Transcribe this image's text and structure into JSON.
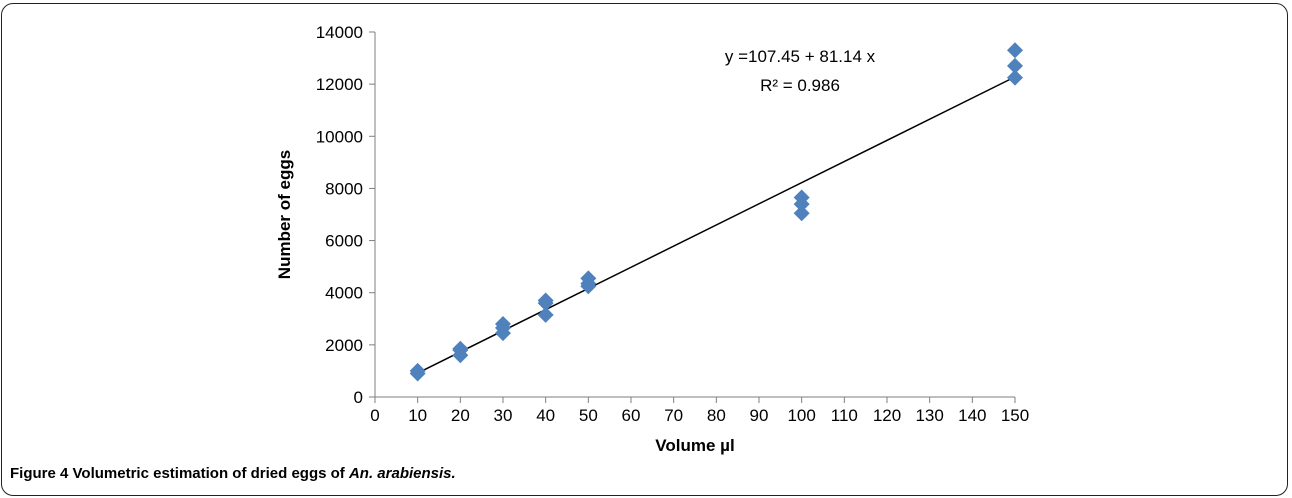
{
  "caption": {
    "label": "Figure 4",
    "text": "Volumetric estimation of dried eggs of",
    "species": "An. arabiensis."
  },
  "chart_data": {
    "type": "scatter",
    "xlabel": "Volume µl",
    "ylabel": "Number of eggs",
    "xlim": [
      0,
      150
    ],
    "ylim": [
      0,
      14000
    ],
    "xticks": [
      0,
      10,
      20,
      30,
      40,
      50,
      60,
      70,
      80,
      90,
      100,
      110,
      120,
      130,
      140,
      150
    ],
    "yticks": [
      0,
      2000,
      4000,
      6000,
      8000,
      10000,
      12000,
      14000
    ],
    "grid": false,
    "marker_color": "#4f81bd",
    "marker": "diamond",
    "points": [
      {
        "x": 10,
        "y": 900
      },
      {
        "x": 10,
        "y": 1000
      },
      {
        "x": 20,
        "y": 1600
      },
      {
        "x": 20,
        "y": 1800
      },
      {
        "x": 20,
        "y": 1850
      },
      {
        "x": 30,
        "y": 2450
      },
      {
        "x": 30,
        "y": 2650
      },
      {
        "x": 30,
        "y": 2800
      },
      {
        "x": 40,
        "y": 3150
      },
      {
        "x": 40,
        "y": 3600
      },
      {
        "x": 40,
        "y": 3700
      },
      {
        "x": 50,
        "y": 4250
      },
      {
        "x": 50,
        "y": 4350
      },
      {
        "x": 50,
        "y": 4550
      },
      {
        "x": 100,
        "y": 7050
      },
      {
        "x": 100,
        "y": 7400
      },
      {
        "x": 100,
        "y": 7650
      },
      {
        "x": 150,
        "y": 12250
      },
      {
        "x": 150,
        "y": 12700
      },
      {
        "x": 150,
        "y": 13300
      }
    ],
    "trendline": {
      "intercept": 107.45,
      "slope": 81.14,
      "x_range": [
        10,
        150
      ],
      "color": "#000000",
      "equation_label": "y =107.45 + 81.14 x",
      "r2_label": "R² = 0.986"
    }
  }
}
